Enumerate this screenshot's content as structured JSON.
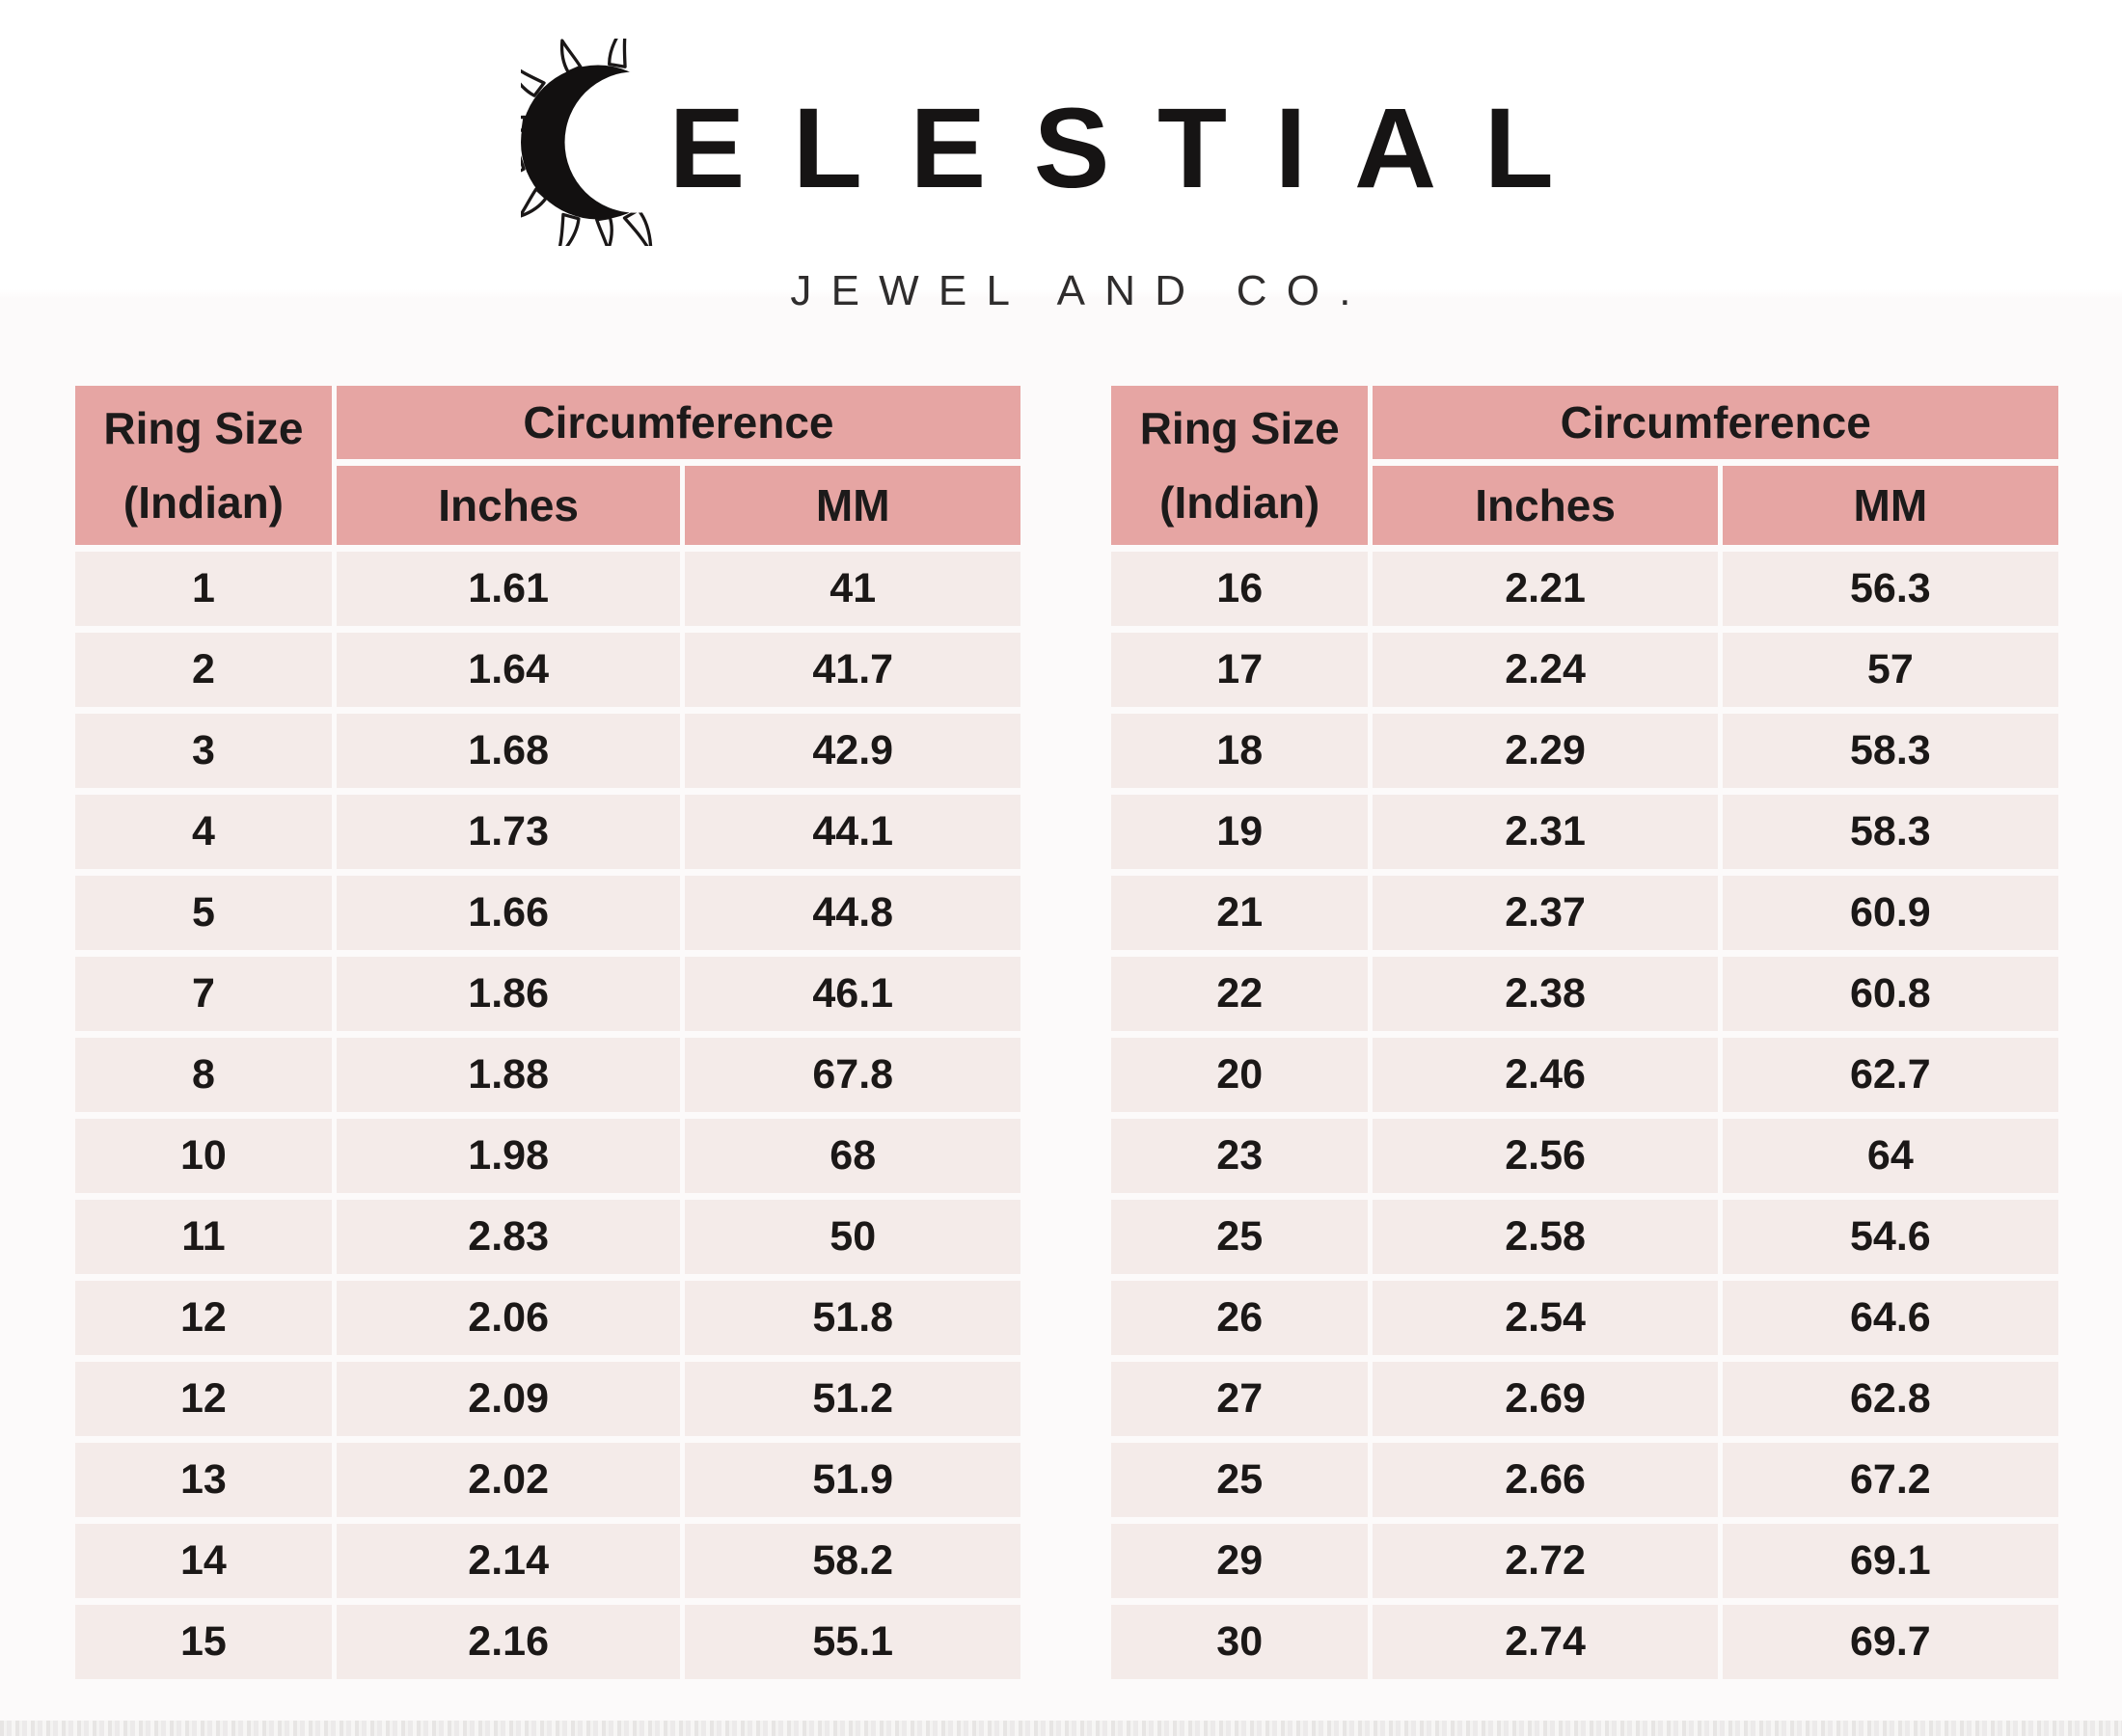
{
  "brand": {
    "name": "CELESTIAL",
    "name_after_icon": "ELESTIAL",
    "subtitle": "JEWEL AND CO.",
    "logo_icon": "sun-crescent-icon"
  },
  "colors": {
    "header_bg": "#e6a5a3",
    "row_bg": "#f4ebe9",
    "page_bg": "#fcfafa",
    "text_dark": "#1b1817"
  },
  "table_template": {
    "col1_line1": "Ring Size",
    "col1_line2": "(Indian)",
    "group_header": "Circumference",
    "sub_inches": "Inches",
    "sub_mm": "MM"
  },
  "chart_data": [
    {
      "type": "table",
      "title": "Ring size chart — left table",
      "columns": [
        "Ring Size (Indian)",
        "Circumference Inches",
        "Circumference MM"
      ],
      "rows": [
        [
          "1",
          "1.61",
          "41"
        ],
        [
          "2",
          "1.64",
          "41.7"
        ],
        [
          "3",
          "1.68",
          "42.9"
        ],
        [
          "4",
          "1.73",
          "44.1"
        ],
        [
          "5",
          "1.66",
          "44.8"
        ],
        [
          "7",
          "1.86",
          "46.1"
        ],
        [
          "8",
          "1.88",
          "67.8"
        ],
        [
          "10",
          "1.98",
          "68"
        ],
        [
          "11",
          "2.83",
          "50"
        ],
        [
          "12",
          "2.06",
          "51.8"
        ],
        [
          "12",
          "2.09",
          "51.2"
        ],
        [
          "13",
          "2.02",
          "51.9"
        ],
        [
          "14",
          "2.14",
          "58.2"
        ],
        [
          "15",
          "2.16",
          "55.1"
        ]
      ]
    },
    {
      "type": "table",
      "title": "Ring size chart — right table",
      "columns": [
        "Ring Size (Indian)",
        "Circumference Inches",
        "Circumference MM"
      ],
      "rows": [
        [
          "16",
          "2.21",
          "56.3"
        ],
        [
          "17",
          "2.24",
          "57"
        ],
        [
          "18",
          "2.29",
          "58.3"
        ],
        [
          "19",
          "2.31",
          "58.3"
        ],
        [
          "21",
          "2.37",
          "60.9"
        ],
        [
          "22",
          "2.38",
          "60.8"
        ],
        [
          "20",
          "2.46",
          "62.7"
        ],
        [
          "23",
          "2.56",
          "64"
        ],
        [
          "25",
          "2.58",
          "54.6"
        ],
        [
          "26",
          "2.54",
          "64.6"
        ],
        [
          "27",
          "2.69",
          "62.8"
        ],
        [
          "25",
          "2.66",
          "67.2"
        ],
        [
          "29",
          "2.72",
          "69.1"
        ],
        [
          "30",
          "2.74",
          "69.7"
        ]
      ]
    }
  ]
}
